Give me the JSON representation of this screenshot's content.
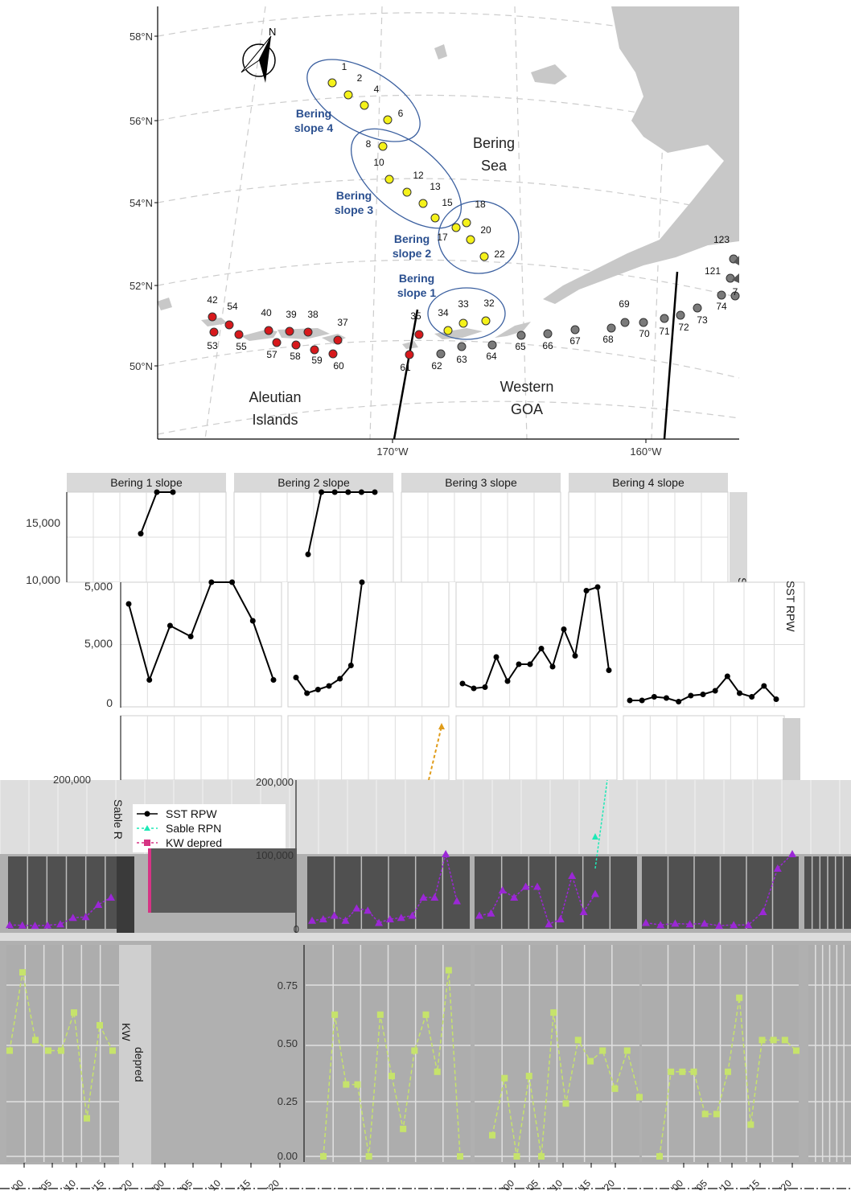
{
  "map": {
    "lat_labels": [
      "58°N",
      "56°N",
      "54°N",
      "52°N",
      "50°N"
    ],
    "lon_labels": [
      "170°W",
      "160°W"
    ],
    "north_label": "N",
    "region_labels": {
      "bering_sea": [
        "Bering",
        "Sea"
      ],
      "aleutian": [
        "Aleutian",
        "Islands"
      ],
      "western_goa": [
        "Western",
        "GOA"
      ]
    },
    "slope_labels": [
      [
        "Bering",
        "slope 4"
      ],
      [
        "Bering",
        "slope 3"
      ],
      [
        "Bering",
        "slope 2"
      ],
      [
        "Bering",
        "slope 1"
      ]
    ],
    "station_labels": {
      "yellow": [
        "1",
        "2",
        "4",
        "6",
        "8",
        "10",
        "12",
        "13",
        "15",
        "17",
        "18",
        "20",
        "22",
        "34",
        "33",
        "32"
      ],
      "red": [
        "42",
        "54",
        "53",
        "55",
        "40",
        "39",
        "38",
        "37",
        "57",
        "58",
        "59",
        "60",
        "35",
        "61"
      ],
      "grey": [
        "62",
        "63",
        "64",
        "65",
        "66",
        "67",
        "68",
        "69",
        "70",
        "71",
        "72",
        "73",
        "74",
        "7",
        "121",
        "123"
      ]
    },
    "colors": {
      "land": "#c8c8c8",
      "yellow": "#f5f21a",
      "red": "#d7191c",
      "grey": "#7a7a7a",
      "slope_label": "#2a4f8f"
    }
  },
  "panels": {
    "facets": [
      "Bering 1 slope",
      "Bering 2 slope",
      "Bering 3 slope",
      "Bering 4 slope"
    ],
    "strip_right_top": "SST RPW",
    "strip_right_top_fragment": "SS",
    "strip_left_mid": "Sable RPN",
    "strip_left_mid_fragment": "Sable R",
    "strip_left_bottom": "KW",
    "strip_left_bottom_fragment": "depred",
    "y_ticks_rpw": [
      "15,000",
      "10,000",
      "5,000",
      "0"
    ],
    "y_tick_rpw_cut": "5,000",
    "y_ticks_rpn": [
      "200,000",
      "100,000",
      "0"
    ],
    "y_ticks_kw": [
      "0.75",
      "0.50",
      "0.25",
      "0.00"
    ],
    "x_ticks": [
      "'00",
      "'05",
      "'10",
      "'15",
      "'20"
    ],
    "legend": [
      {
        "label": "SST RPW",
        "color": "#000000",
        "marker": "circle"
      },
      {
        "label": "Sable RPN",
        "color": "#1de9b6",
        "marker": "triangle"
      },
      {
        "label": "KW depred",
        "color": "#d63384",
        "marker": "square"
      }
    ],
    "series_colors": {
      "rpw": "#000000",
      "rpn": "#9b27d6",
      "rpn_alt": "#e09c1a",
      "kw": "#c6e36b"
    }
  },
  "chart_data": [
    {
      "type": "line",
      "title": "",
      "ylabel": "SST RPW",
      "ylim": [
        0,
        17000
      ],
      "series": [
        {
          "name": "SST RPW",
          "facet": "Bering 1 slope",
          "values": [
            8200,
            1900,
            6400,
            5500,
            11300,
            11000,
            6800,
            1900
          ]
        },
        {
          "name": "SST RPW",
          "facet": "Bering 2 slope",
          "values": [
            2100,
            800,
            1100,
            1400,
            2000,
            3100,
            10400,
            12000,
            13800,
            16900,
            12500
          ]
        },
        {
          "name": "SST RPW",
          "facet": "Bering 3 slope",
          "values": [
            1600,
            1200,
            1300,
            3800,
            1800,
            3200,
            3200,
            4500,
            3000,
            6100,
            3900,
            9300,
            9600,
            2700
          ]
        },
        {
          "name": "SST RPW",
          "facet": "Bering 4 slope",
          "values": [
            200,
            200,
            500,
            400,
            100,
            600,
            700,
            1000,
            2200,
            800,
            500,
            1400,
            300
          ]
        }
      ]
    },
    {
      "type": "line",
      "ylabel": "Sable RPN",
      "ylim": [
        0,
        200000
      ],
      "series": [
        {
          "name": "Sable RPN",
          "values": [
            2000,
            1500,
            1000,
            1500,
            3000,
            12000,
            13000,
            30000,
            40000
          ]
        },
        {
          "name": "Sable RPN",
          "values": [
            8000,
            10000,
            15000,
            8000,
            25000,
            22000,
            5000,
            10000,
            12000,
            15000,
            40000,
            40000,
            100000,
            35000
          ]
        },
        {
          "name": "Sable RPN",
          "values": [
            15000,
            18000,
            50000,
            40000,
            55000,
            55000,
            3000,
            10000,
            70000,
            20000,
            45000
          ]
        },
        {
          "name": "Sable RPN",
          "values": [
            5000,
            2000,
            4000,
            3000,
            4000,
            1000,
            2000,
            2000,
            20000,
            80000,
            100000
          ]
        }
      ]
    },
    {
      "type": "line",
      "ylabel": "KW depred",
      "ylim": [
        0,
        1
      ],
      "series": [
        {
          "name": "KW depred",
          "values": [
            0.5,
            0.87,
            0.55,
            0.5,
            0.5,
            0.68,
            0.18,
            0.62,
            0.5
          ]
        },
        {
          "name": "KW depred",
          "values": [
            0.0,
            0.67,
            0.34,
            0.34,
            0.0,
            0.67,
            0.38,
            0.13,
            0.5,
            0.67,
            0.4,
            0.88,
            0.0
          ]
        },
        {
          "name": "KW depred",
          "values": [
            0.1,
            0.37,
            0.0,
            0.38,
            0.0,
            0.68,
            0.25,
            0.55,
            0.45,
            0.5,
            0.32,
            0.5,
            0.28
          ]
        },
        {
          "name": "KW depred",
          "values": [
            0.0,
            0.4,
            0.4,
            0.4,
            0.2,
            0.2,
            0.4,
            0.75,
            0.15,
            0.55,
            0.55,
            0.55,
            0.5
          ]
        }
      ]
    }
  ]
}
